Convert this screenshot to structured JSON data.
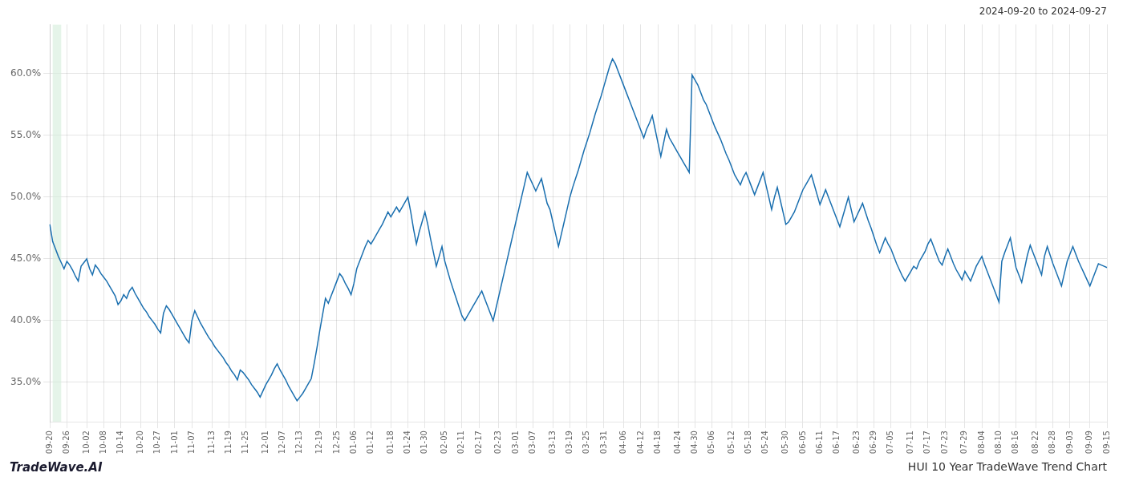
{
  "chart_data": {
    "type": "line",
    "title": "HUI 10 Year TradeWave Trend Chart",
    "subtitle": "2024-09-20 to 2024-09-27",
    "annotations": [
      "TradeWave.AI"
    ],
    "color": "#1a6faf",
    "grid": true,
    "ylim": [
      0.318,
      0.64
    ],
    "yticks": [
      {
        "value": 0.35,
        "label": "35.0%"
      },
      {
        "value": 0.4,
        "label": "40.0%"
      },
      {
        "value": 0.45,
        "label": "45.0%"
      },
      {
        "value": 0.5,
        "label": "50.0%"
      },
      {
        "value": 0.55,
        "label": "55.0%"
      },
      {
        "value": 0.6,
        "label": "60.0%"
      }
    ],
    "highlight": {
      "start": 1,
      "end": 4,
      "color": "#d4edda"
    },
    "categories": [
      "09-20",
      null,
      null,
      null,
      null,
      null,
      "09-26",
      null,
      null,
      null,
      null,
      null,
      null,
      "10-02",
      null,
      null,
      null,
      null,
      null,
      "10-08",
      null,
      null,
      null,
      null,
      null,
      "10-14",
      null,
      null,
      null,
      null,
      null,
      null,
      "10-20",
      null,
      null,
      null,
      null,
      null,
      "10-27",
      null,
      null,
      null,
      null,
      null,
      "11-01",
      null,
      null,
      null,
      null,
      null,
      "11-07",
      null,
      null,
      null,
      null,
      null,
      null,
      "11-13",
      null,
      null,
      null,
      null,
      null,
      "11-19",
      null,
      null,
      null,
      null,
      null,
      "11-25",
      null,
      null,
      null,
      null,
      null,
      null,
      "12-01",
      null,
      null,
      null,
      null,
      null,
      "12-07",
      null,
      null,
      null,
      null,
      null,
      "12-13",
      null,
      null,
      null,
      null,
      null,
      null,
      "12-19",
      null,
      null,
      null,
      null,
      null,
      "12-25",
      null,
      null,
      null,
      null,
      null,
      "01-06",
      null,
      null,
      null,
      null,
      null,
      "01-12",
      null,
      null,
      null,
      null,
      null,
      null,
      "01-18",
      null,
      null,
      null,
      null,
      null,
      "01-24",
      null,
      null,
      null,
      null,
      null,
      "01-30",
      null,
      null,
      null,
      null,
      null,
      null,
      "02-05",
      null,
      null,
      null,
      null,
      null,
      "02-11",
      null,
      null,
      null,
      null,
      null,
      "02-17",
      null,
      null,
      null,
      null,
      null,
      null,
      "02-23",
      null,
      null,
      null,
      null,
      null,
      "03-01",
      null,
      null,
      null,
      null,
      null,
      "03-07",
      null,
      null,
      null,
      null,
      null,
      null,
      "03-13",
      null,
      null,
      null,
      null,
      null,
      "03-19",
      null,
      null,
      null,
      null,
      null,
      "03-25",
      null,
      null,
      null,
      null,
      null,
      "03-31",
      null,
      null,
      null,
      null,
      null,
      null,
      "04-06",
      null,
      null,
      null,
      null,
      null,
      "04-12",
      null,
      null,
      null,
      null,
      null,
      "04-18",
      null,
      null,
      null,
      null,
      null,
      null,
      "04-24",
      null,
      null,
      null,
      null,
      null,
      "04-30",
      null,
      null,
      null,
      null,
      null,
      "05-06",
      null,
      null,
      null,
      null,
      null,
      null,
      "05-12",
      null,
      null,
      null,
      null,
      null,
      "05-18",
      null,
      null,
      null,
      null,
      null,
      "05-24",
      null,
      null,
      null,
      null,
      null,
      null,
      "05-30",
      null,
      null,
      null,
      null,
      null,
      "06-05",
      null,
      null,
      null,
      null,
      null,
      "06-11",
      null,
      null,
      null,
      null,
      null,
      "06-17",
      null,
      null,
      null,
      null,
      null,
      null,
      "06-23",
      null,
      null,
      null,
      null,
      null,
      "06-29",
      null,
      null,
      null,
      null,
      null,
      "07-05",
      null,
      null,
      null,
      null,
      null,
      null,
      "07-11",
      null,
      null,
      null,
      null,
      null,
      "07-17",
      null,
      null,
      null,
      null,
      null,
      "07-23",
      null,
      null,
      null,
      null,
      null,
      null,
      "07-29",
      null,
      null,
      null,
      null,
      null,
      "08-04",
      null,
      null,
      null,
      null,
      null,
      "08-10",
      null,
      null,
      null,
      null,
      null,
      "08-16",
      null,
      null,
      null,
      null,
      null,
      null,
      "08-22",
      null,
      null,
      null,
      null,
      null,
      "08-28",
      null,
      null,
      null,
      null,
      null,
      "09-03",
      null,
      null,
      null,
      null,
      null,
      null,
      "09-09",
      null,
      null,
      null,
      null,
      null,
      "09-15"
    ],
    "values": [
      0.478,
      0.464,
      0.458,
      0.452,
      0.447,
      0.442,
      0.448,
      0.445,
      0.441,
      0.436,
      0.432,
      0.444,
      0.447,
      0.45,
      0.442,
      0.437,
      0.445,
      0.442,
      0.438,
      0.435,
      0.432,
      0.428,
      0.424,
      0.42,
      0.413,
      0.416,
      0.421,
      0.418,
      0.424,
      0.427,
      0.422,
      0.418,
      0.414,
      0.41,
      0.407,
      0.403,
      0.4,
      0.397,
      0.393,
      0.39,
      0.406,
      0.412,
      0.409,
      0.405,
      0.401,
      0.397,
      0.393,
      0.389,
      0.385,
      0.382,
      0.4,
      0.408,
      0.403,
      0.398,
      0.394,
      0.39,
      0.386,
      0.383,
      0.379,
      0.376,
      0.373,
      0.37,
      0.366,
      0.363,
      0.359,
      0.356,
      0.352,
      0.36,
      0.358,
      0.355,
      0.352,
      0.348,
      0.345,
      0.342,
      0.338,
      0.343,
      0.348,
      0.352,
      0.356,
      0.361,
      0.365,
      0.36,
      0.356,
      0.352,
      0.347,
      0.343,
      0.339,
      0.335,
      0.338,
      0.341,
      0.345,
      0.349,
      0.353,
      0.365,
      0.378,
      0.392,
      0.405,
      0.418,
      0.414,
      0.42,
      0.426,
      0.432,
      0.438,
      0.435,
      0.43,
      0.426,
      0.421,
      0.43,
      0.442,
      0.448,
      0.454,
      0.46,
      0.465,
      0.462,
      0.466,
      0.47,
      0.474,
      0.478,
      0.483,
      0.488,
      0.484,
      0.488,
      0.492,
      0.488,
      0.492,
      0.496,
      0.5,
      0.488,
      0.474,
      0.462,
      0.472,
      0.48,
      0.488,
      0.478,
      0.466,
      0.455,
      0.444,
      0.452,
      0.46,
      0.448,
      0.44,
      0.432,
      0.425,
      0.418,
      0.411,
      0.404,
      0.4,
      0.404,
      0.408,
      0.412,
      0.416,
      0.42,
      0.424,
      0.418,
      0.412,
      0.406,
      0.4,
      0.41,
      0.42,
      0.43,
      0.44,
      0.45,
      0.46,
      0.47,
      0.48,
      0.49,
      0.5,
      0.51,
      0.52,
      0.515,
      0.51,
      0.505,
      0.51,
      0.515,
      0.505,
      0.495,
      0.49,
      0.48,
      0.47,
      0.46,
      0.47,
      0.48,
      0.49,
      0.5,
      0.508,
      0.515,
      0.522,
      0.53,
      0.538,
      0.545,
      0.552,
      0.56,
      0.568,
      0.575,
      0.582,
      0.59,
      0.598,
      0.606,
      0.612,
      0.608,
      0.602,
      0.596,
      0.59,
      0.584,
      0.578,
      0.572,
      0.566,
      0.56,
      0.554,
      0.548,
      0.555,
      0.56,
      0.566,
      0.555,
      0.544,
      0.533,
      0.544,
      0.555,
      0.548,
      0.544,
      0.54,
      0.536,
      0.532,
      0.528,
      0.524,
      0.52,
      0.599,
      0.595,
      0.591,
      0.585,
      0.579,
      0.575,
      0.569,
      0.563,
      0.557,
      0.552,
      0.547,
      0.541,
      0.535,
      0.53,
      0.524,
      0.518,
      0.514,
      0.51,
      0.516,
      0.52,
      0.514,
      0.508,
      0.502,
      0.508,
      0.514,
      0.52,
      0.51,
      0.5,
      0.49,
      0.5,
      0.508,
      0.498,
      0.488,
      0.478,
      0.48,
      0.484,
      0.488,
      0.494,
      0.5,
      0.506,
      0.51,
      0.514,
      0.518,
      0.51,
      0.502,
      0.494,
      0.5,
      0.506,
      0.5,
      0.494,
      0.488,
      0.482,
      0.476,
      0.484,
      0.492,
      0.5,
      0.49,
      0.48,
      0.485,
      0.49,
      0.495,
      0.488,
      0.481,
      0.475,
      0.468,
      0.461,
      0.455,
      0.461,
      0.467,
      0.462,
      0.458,
      0.452,
      0.446,
      0.441,
      0.436,
      0.432,
      0.436,
      0.44,
      0.444,
      0.442,
      0.448,
      0.452,
      0.456,
      0.462,
      0.466,
      0.46,
      0.454,
      0.448,
      0.445,
      0.452,
      0.458,
      0.452,
      0.446,
      0.441,
      0.437,
      0.433,
      0.44,
      0.436,
      0.432,
      0.438,
      0.444,
      0.448,
      0.452,
      0.445,
      0.439,
      0.433,
      0.427,
      0.421,
      0.415,
      0.448,
      0.455,
      0.461,
      0.467,
      0.455,
      0.443,
      0.437,
      0.431,
      0.442,
      0.453,
      0.461,
      0.455,
      0.449,
      0.443,
      0.437,
      0.452,
      0.46,
      0.453,
      0.446,
      0.44,
      0.434,
      0.428,
      0.438,
      0.448,
      0.454,
      0.46,
      0.454,
      0.448,
      0.443,
      0.438,
      0.433,
      0.428,
      0.434,
      0.44,
      0.446,
      0.445,
      0.444,
      0.443
    ]
  }
}
